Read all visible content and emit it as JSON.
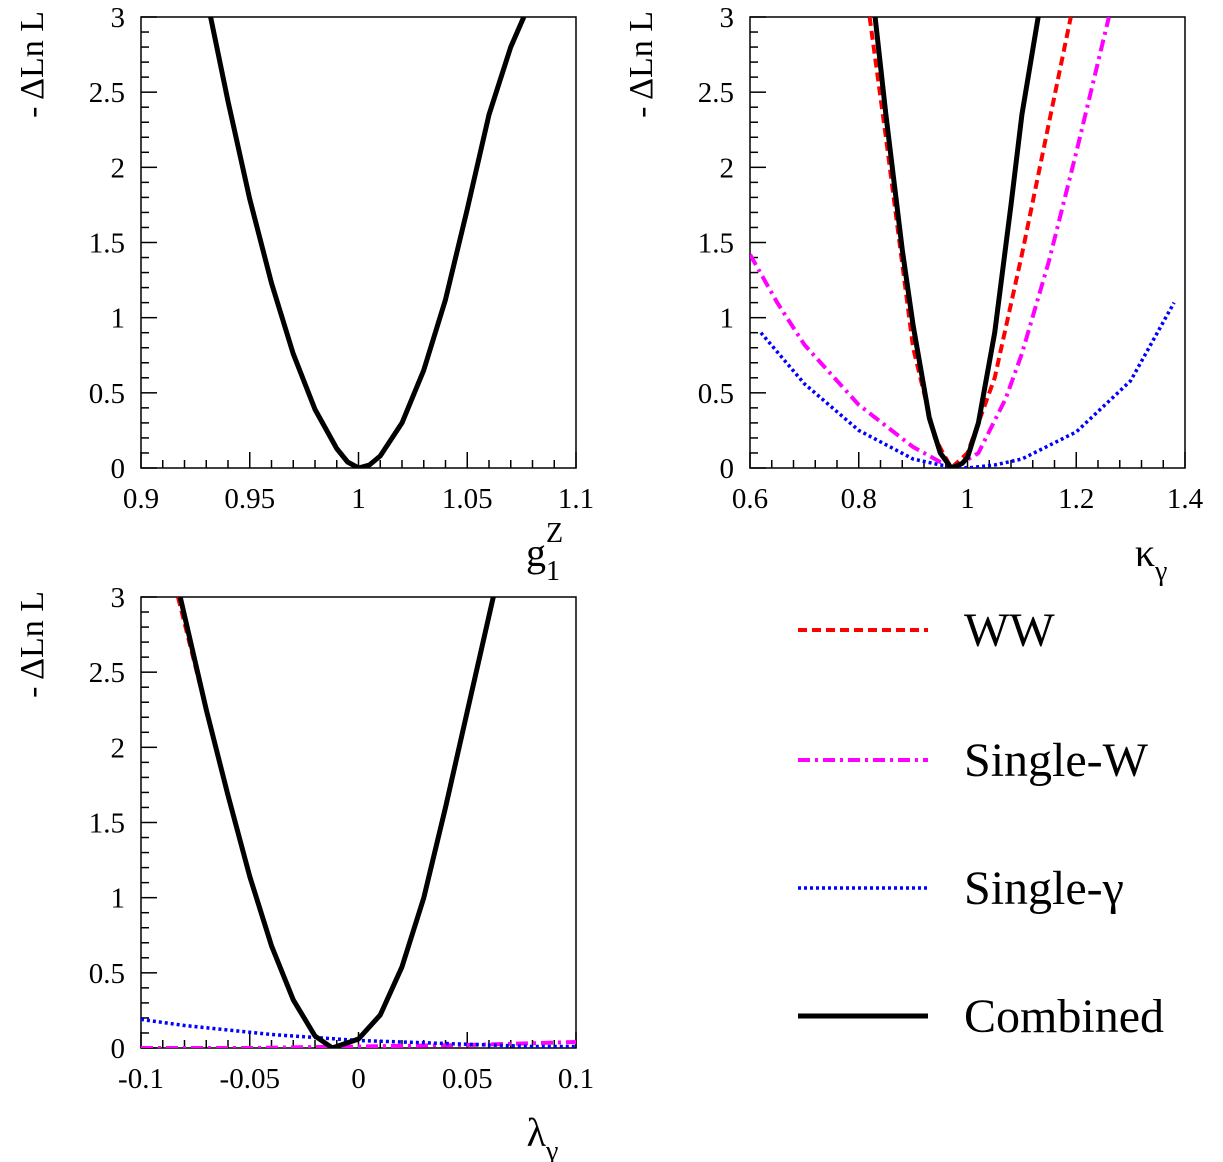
{
  "chart_data": [
    {
      "type": "line",
      "ylabel": "- ΔLn L",
      "xlabel": {
        "main": "g",
        "sub": "1",
        "sup": "Z"
      },
      "xlim": [
        0.9,
        1.1
      ],
      "ylim": [
        0,
        3
      ],
      "xticks": [
        0.9,
        0.95,
        1.0,
        1.05,
        1.1
      ],
      "xtick_labels": [
        "0.9",
        "0.95",
        "1",
        "1.05",
        "1.1"
      ],
      "yticks": [
        0,
        0.5,
        1,
        1.5,
        2,
        2.5,
        3
      ],
      "ytick_labels": [
        "0",
        "0.5",
        "1",
        "1.5",
        "2",
        "2.5",
        "3"
      ],
      "series": [
        {
          "style": "Combined",
          "x": [
            0.932,
            0.94,
            0.95,
            0.96,
            0.97,
            0.98,
            0.99,
            0.995,
            1.0,
            1.005,
            1.01,
            1.02,
            1.03,
            1.04,
            1.05,
            1.06,
            1.07,
            1.076
          ],
          "y": [
            3.0,
            2.44,
            1.79,
            1.23,
            0.76,
            0.39,
            0.13,
            0.04,
            0.0,
            0.02,
            0.08,
            0.3,
            0.65,
            1.12,
            1.72,
            2.35,
            2.8,
            3.0
          ]
        }
      ]
    },
    {
      "type": "line",
      "ylabel": "- ΔLn L",
      "xlabel": {
        "main": "κ",
        "sub": "γ",
        "sup": ""
      },
      "xlim": [
        0.6,
        1.4
      ],
      "ylim": [
        0,
        3
      ],
      "xticks": [
        0.6,
        0.8,
        1.0,
        1.2,
        1.4
      ],
      "xtick_labels": [
        "0.6",
        "0.8",
        "1",
        "1.2",
        "1.4"
      ],
      "yticks": [
        0,
        0.5,
        1,
        1.5,
        2,
        2.5,
        3
      ],
      "ytick_labels": [
        "0",
        "0.5",
        "1",
        "1.5",
        "2",
        "2.5",
        "3"
      ],
      "series": [
        {
          "style": "WW",
          "x": [
            0.82,
            0.85,
            0.9,
            0.94,
            0.97,
            1.0,
            1.05,
            1.1,
            1.15,
            1.19
          ],
          "y": [
            3.0,
            2.2,
            0.8,
            0.2,
            0.0,
            0.1,
            0.6,
            1.42,
            2.3,
            3.0
          ]
        },
        {
          "style": "Single-W",
          "x": [
            0.6,
            0.65,
            0.7,
            0.8,
            0.9,
            0.95,
            0.98,
            1.02,
            1.07,
            1.1,
            1.15,
            1.2,
            1.26
          ],
          "y": [
            1.42,
            1.1,
            0.82,
            0.42,
            0.14,
            0.04,
            0.01,
            0.1,
            0.46,
            0.76,
            1.38,
            2.1,
            3.0
          ]
        },
        {
          "style": "Single-γ",
          "x": [
            0.62,
            0.7,
            0.8,
            0.9,
            0.95,
            1.0,
            1.05,
            1.1,
            1.2,
            1.3,
            1.38
          ],
          "y": [
            0.9,
            0.56,
            0.25,
            0.06,
            0.02,
            0.0,
            0.02,
            0.06,
            0.24,
            0.58,
            1.1
          ]
        },
        {
          "style": "Combined",
          "x": [
            0.83,
            0.85,
            0.88,
            0.9,
            0.93,
            0.95,
            0.97,
            0.99,
            1.0,
            1.02,
            1.05,
            1.08,
            1.1,
            1.13
          ],
          "y": [
            3.0,
            2.35,
            1.45,
            0.95,
            0.33,
            0.1,
            0.0,
            0.03,
            0.07,
            0.3,
            0.9,
            1.75,
            2.35,
            3.0
          ]
        }
      ]
    },
    {
      "type": "line",
      "ylabel": "- ΔLn L",
      "xlabel": {
        "main": "λ",
        "sub": "γ",
        "sup": ""
      },
      "xlim": [
        -0.1,
        0.1
      ],
      "ylim": [
        0,
        3
      ],
      "xticks": [
        -0.1,
        -0.05,
        0.0,
        0.05,
        0.1
      ],
      "xtick_labels": [
        "-0.1",
        "-0.05",
        "0",
        "0.05",
        "0.1"
      ],
      "yticks": [
        0,
        0.5,
        1,
        1.5,
        2,
        2.5,
        3
      ],
      "ytick_labels": [
        "0",
        "0.5",
        "1",
        "1.5",
        "2",
        "2.5",
        "3"
      ],
      "series": [
        {
          "style": "WW",
          "x": [
            -0.083,
            -0.07,
            -0.06,
            -0.05,
            -0.04,
            -0.03,
            -0.02,
            -0.012,
            0.0,
            0.01,
            0.02,
            0.03,
            0.04,
            0.05,
            0.062
          ],
          "y": [
            3.0,
            2.25,
            1.68,
            1.14,
            0.68,
            0.32,
            0.08,
            0.0,
            0.06,
            0.22,
            0.54,
            1.0,
            1.6,
            2.24,
            3.0
          ]
        },
        {
          "style": "Single-W",
          "x": [
            -0.1,
            -0.05,
            0.0,
            0.05,
            0.1
          ],
          "y": [
            0.0,
            0.0,
            0.01,
            0.02,
            0.04
          ]
        },
        {
          "style": "Single-γ",
          "x": [
            -0.1,
            -0.08,
            -0.06,
            -0.04,
            -0.02,
            0.0,
            0.02,
            0.04,
            0.06,
            0.08,
            0.1
          ],
          "y": [
            0.19,
            0.15,
            0.12,
            0.09,
            0.07,
            0.05,
            0.04,
            0.03,
            0.02,
            0.01,
            0.01
          ]
        },
        {
          "style": "Combined",
          "x": [
            -0.082,
            -0.07,
            -0.06,
            -0.05,
            -0.04,
            -0.03,
            -0.02,
            -0.012,
            0.0,
            0.01,
            0.02,
            0.03,
            0.04,
            0.05,
            0.062
          ],
          "y": [
            3.0,
            2.25,
            1.68,
            1.14,
            0.68,
            0.32,
            0.08,
            0.0,
            0.06,
            0.22,
            0.54,
            1.0,
            1.6,
            2.24,
            3.0
          ]
        }
      ]
    }
  ],
  "legend": {
    "placement": "bottom-right",
    "entries": [
      {
        "label": "WW",
        "color": "#ff0000",
        "dash": "dashed"
      },
      {
        "label": "Single-W",
        "color": "#ff00ff",
        "dash": "dash-dot"
      },
      {
        "label": "Single-γ",
        "color": "#0000ff",
        "dash": "dotted"
      },
      {
        "label": "Combined",
        "color": "#000000",
        "dash": "solid"
      }
    ]
  },
  "styles": {
    "WW": {
      "color": "#ff0000",
      "dash": "9 5",
      "width": 4
    },
    "Single-W": {
      "color": "#ff00ff",
      "dash": "12 5 3 5",
      "width": 4
    },
    "Single-γ": {
      "color": "#0000ff",
      "dash": "3 3",
      "width": 3.5
    },
    "Combined": {
      "color": "#000000",
      "dash": "",
      "width": 5
    }
  }
}
